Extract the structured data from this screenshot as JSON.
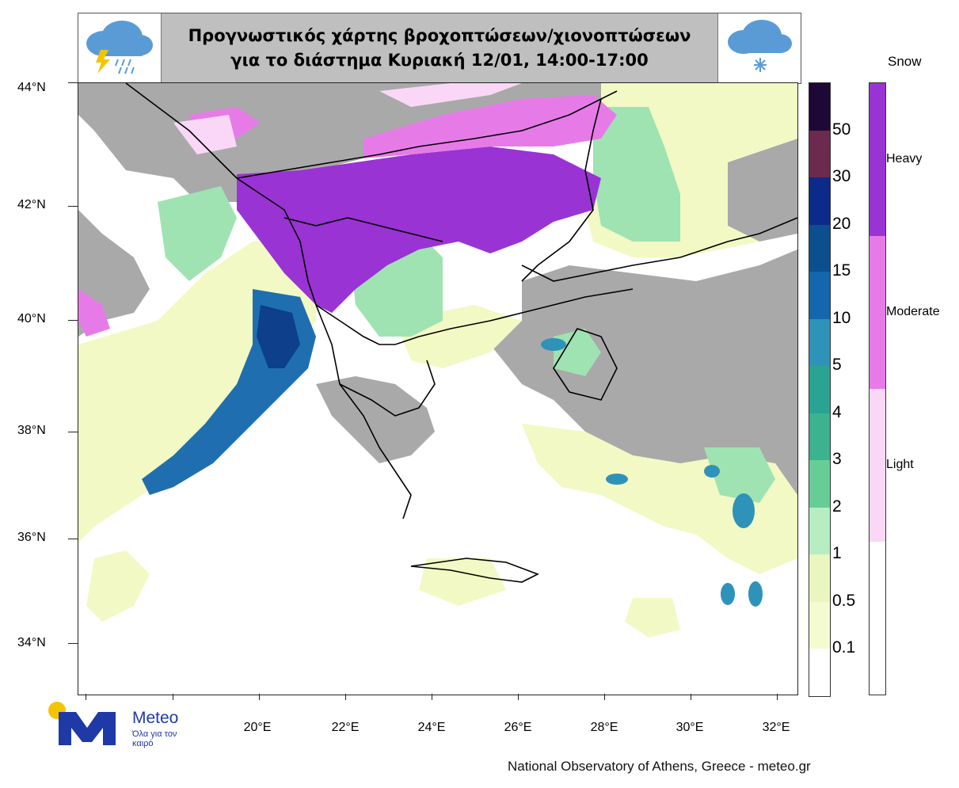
{
  "title": {
    "line1": "Προγνωστικός χάρτης βροχοπτώσεων/χιονοπτώσεων",
    "line2": "για το διάστημα  Κυριακή 12/01, 14:00-17:00"
  },
  "map": {
    "lat_labels": [
      "44°N",
      "42°N",
      "40°N",
      "38°N",
      "36°N",
      "34°N"
    ],
    "lon_labels": [
      "20°E",
      "22°E",
      "24°E",
      "26°E",
      "28°E",
      "30°E",
      "32°E"
    ],
    "colors": {
      "sea": "#ffffff",
      "land_nodata": "#a9a9a9",
      "border": "#000000"
    }
  },
  "rain_legend": {
    "labels": [
      "50",
      "30",
      "20",
      "15",
      "10",
      "5",
      "4",
      "3",
      "2",
      "1",
      "0.5",
      "0.1"
    ],
    "colors": [
      "#1e0836",
      "#6b2a4e",
      "#0c2a8a",
      "#0b4f8f",
      "#1466ad",
      "#2f92b9",
      "#2aa392",
      "#3bb38f",
      "#67cd97",
      "#b6eec1",
      "#e9f6c0",
      "#f5fbd0",
      "#ffffff"
    ]
  },
  "snow_legend": {
    "title": "Snow",
    "levels": [
      {
        "label": "Heavy",
        "color": "#9a33d3"
      },
      {
        "label": "Moderate",
        "color": "#e67be8"
      },
      {
        "label": "Light",
        "color": "#fbd7f7"
      },
      {
        "label": "",
        "color": "#ffffff"
      }
    ]
  },
  "logo": {
    "name": "Meteo",
    "tagline": "Όλα για τον καιρό"
  },
  "footer": "National Observatory of Athens, Greece - meteo.gr"
}
